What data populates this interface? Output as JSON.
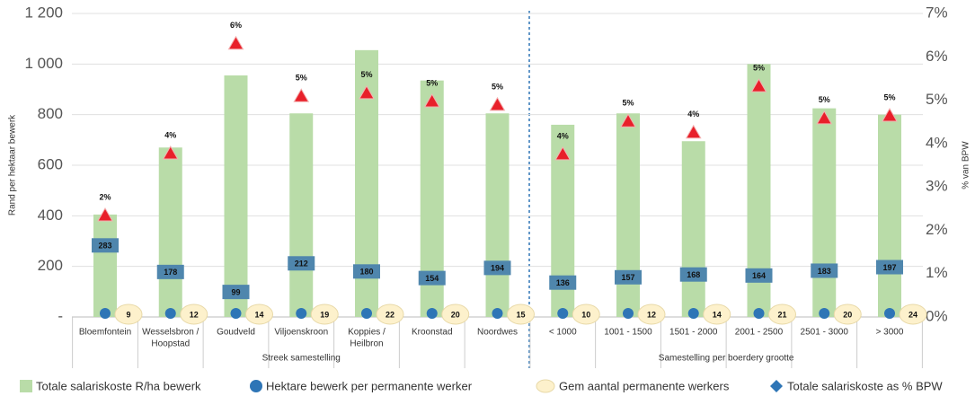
{
  "chart_data": {
    "type": "combo",
    "ylabel": "Rand per hektaar bewerk",
    "y2label": "% van BPW",
    "groups": [
      {
        "label": "Streek samestelling",
        "count": 7
      },
      {
        "label": "Samestelling per boerdery grootte",
        "count": 6
      }
    ],
    "categories": [
      [
        "Bloemfontein"
      ],
      [
        "Wesselsbron /",
        "Hoopstad"
      ],
      [
        "Goudveld"
      ],
      [
        "Viljoenskroon"
      ],
      [
        "Koppies /",
        "Heilbron"
      ],
      [
        "Kroonstad"
      ],
      [
        "Noordwes"
      ],
      [
        "< 1000"
      ],
      [
        "1001 - 1500"
      ],
      [
        "1501 - 2000"
      ],
      [
        "2001 - 2500"
      ],
      [
        "2501 - 3000"
      ],
      [
        "> 3000"
      ]
    ],
    "ylim": [
      0,
      1200
    ],
    "yticks": [
      {
        "value": 0,
        "label": "-"
      },
      200,
      400,
      600,
      800,
      {
        "value": 1000,
        "label": "1 000"
      },
      {
        "value": 1200,
        "label": "1 200"
      }
    ],
    "y2lim": [
      0,
      7
    ],
    "y2ticks": [
      {
        "value": 0,
        "label": "0%"
      },
      {
        "value": 1,
        "label": "1%"
      },
      {
        "value": 2,
        "label": "2%"
      },
      {
        "value": 3,
        "label": "3%"
      },
      {
        "value": 4,
        "label": "4%"
      },
      {
        "value": 5,
        "label": "5%"
      },
      {
        "value": 6,
        "label": "6%"
      },
      {
        "value": 7,
        "label": "7%"
      }
    ],
    "series": [
      {
        "name": "Totale salariskoste R/ha bewerk",
        "color": "#b9dca8",
        "kind": "bar",
        "values": [
          405,
          670,
          955,
          805,
          1055,
          935,
          805,
          760,
          805,
          695,
          1000,
          825,
          800
        ]
      },
      {
        "name": "Hektare bewerk per permanente werker",
        "color": "#2e75b6",
        "kind": "box",
        "values": [
          283,
          178,
          99,
          212,
          180,
          154,
          194,
          136,
          157,
          168,
          164,
          183,
          197
        ]
      },
      {
        "name": "Gem aantal permanente werkers",
        "color": "#fdf1cc",
        "kind": "ellipse",
        "values": [
          9,
          12,
          14,
          19,
          22,
          20,
          15,
          10,
          12,
          14,
          21,
          20,
          24
        ]
      },
      {
        "name": "Totale salariskoste as % BPW",
        "color": "#e8202a",
        "kind": "triangle",
        "axis": "y2",
        "values": [
          2.34,
          3.77,
          6.3,
          5.09,
          5.16,
          4.97,
          4.89,
          3.75,
          4.51,
          4.25,
          5.32,
          4.58,
          4.64
        ],
        "value_labels": [
          "2%",
          "4%",
          "6%",
          "5%",
          "5%",
          "5%",
          "5%",
          "4%",
          "5%",
          "4%",
          "5%",
          "5%",
          "5%"
        ]
      }
    ]
  }
}
